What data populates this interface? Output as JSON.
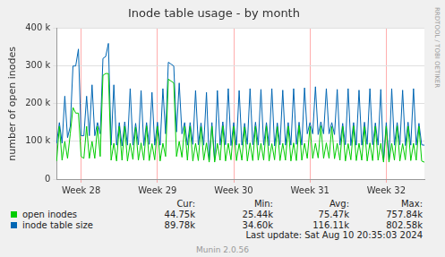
{
  "chart_data": {
    "type": "line",
    "title": "Inode table usage - by month",
    "y_label": "number of open inodes",
    "categories": [
      null,
      null,
      null,
      null,
      null,
      null,
      null,
      null,
      null,
      "Week 28",
      null,
      null,
      null,
      null,
      null,
      null,
      null,
      null,
      null,
      null,
      null,
      null,
      null,
      null,
      null,
      null,
      null,
      null,
      null,
      null,
      null,
      null,
      null,
      null,
      null,
      null,
      null,
      "Week 29",
      null,
      null,
      null,
      null,
      null,
      null,
      null,
      null,
      null,
      null,
      null,
      null,
      null,
      null,
      null,
      null,
      null,
      null,
      null,
      null,
      null,
      null,
      null,
      null,
      null,
      null,
      null,
      "Week 30",
      null,
      null,
      null,
      null,
      null,
      null,
      null,
      null,
      null,
      null,
      null,
      null,
      null,
      null,
      null,
      null,
      null,
      null,
      null,
      null,
      null,
      null,
      null,
      null,
      null,
      null,
      null,
      "Week 31",
      null,
      null,
      null,
      null,
      null,
      null,
      null,
      null,
      null,
      null,
      null,
      null,
      null,
      null,
      null,
      null,
      null,
      null,
      null,
      null,
      null,
      null,
      null,
      null,
      null,
      null,
      null,
      "Week 32",
      null,
      null,
      null,
      null,
      null,
      null,
      null,
      null,
      null,
      null,
      null,
      null,
      null,
      null
    ],
    "series": [
      {
        "name": "open inodes",
        "color": "#00cc00",
        "values": [
          48000,
          140000,
          50000,
          100000,
          55000,
          120000,
          190000,
          175000,
          175000,
          60000,
          55000,
          140000,
          55000,
          100000,
          55000,
          140000,
          60000,
          275000,
          280000,
          280000,
          50000,
          95000,
          48000,
          140000,
          50000,
          140000,
          48000,
          95000,
          52000,
          138000,
          50000,
          96000,
          50000,
          141000,
          49000,
          94000,
          51000,
          140000,
          48000,
          95000,
          60000,
          265000,
          260000,
          255000,
          60000,
          100000,
          58000,
          140000,
          50000,
          140000,
          48000,
          95000,
          49000,
          139000,
          50000,
          96000,
          45000,
          140000,
          45000,
          95000,
          50000,
          141000,
          48000,
          95000,
          51000,
          140000,
          49000,
          94000,
          50000,
          138000,
          48000,
          96000,
          49000,
          140000,
          50000,
          95000,
          50000,
          141000,
          48000,
          94000,
          51000,
          139000,
          49000,
          95000,
          50000,
          140000,
          48000,
          96000,
          49000,
          142000,
          50000,
          95000,
          55000,
          140000,
          55000,
          95000,
          56000,
          141000,
          55000,
          96000,
          55000,
          139000,
          54000,
          95000,
          50000,
          140000,
          48000,
          94000,
          51000,
          141000,
          49000,
          95000,
          50000,
          139000,
          48000,
          96000,
          49000,
          140000,
          50000,
          95000,
          45000,
          140000,
          45000,
          95000,
          50000,
          141000,
          48000,
          94000,
          51000,
          140000,
          49000,
          95000,
          50000,
          140000,
          48000,
          44750
        ]
      },
      {
        "name": "inode table size",
        "color": "#0066b3",
        "values": [
          95000,
          150000,
          95000,
          220000,
          110000,
          140000,
          300000,
          300000,
          345000,
          115000,
          115000,
          220000,
          115000,
          250000,
          115000,
          150000,
          120000,
          320000,
          325000,
          360000,
          90000,
          250000,
          90000,
          150000,
          88000,
          152000,
          90000,
          240000,
          90000,
          148000,
          91000,
          235000,
          89000,
          150000,
          92000,
          230000,
          90000,
          151000,
          90000,
          240000,
          120000,
          310000,
          305000,
          300000,
          125000,
          255000,
          120000,
          150000,
          90000,
          150000,
          92000,
          235000,
          91000,
          149000,
          90000,
          230000,
          50000,
          150000,
          50000,
          235000,
          90000,
          152000,
          91000,
          240000,
          89000,
          150000,
          90000,
          235000,
          90000,
          148000,
          92000,
          240000,
          91000,
          151000,
          90000,
          238000,
          90000,
          150000,
          89000,
          240000,
          88000,
          149000,
          91000,
          236000,
          90000,
          150000,
          90000,
          240000,
          92000,
          151000,
          90000,
          242000,
          120000,
          150000,
          120000,
          245000,
          118000,
          152000,
          120000,
          240000,
          120000,
          150000,
          118000,
          238000,
          90000,
          148000,
          91000,
          240000,
          89000,
          150000,
          90000,
          236000,
          90000,
          151000,
          92000,
          240000,
          91000,
          149000,
          90000,
          238000,
          50000,
          150000,
          50000,
          240000,
          90000,
          150000,
          91000,
          236000,
          89000,
          151000,
          90000,
          240000,
          90000,
          148000,
          91000,
          89780
        ]
      }
    ],
    "ylim": [
      0,
      400000
    ],
    "yticks": [
      0,
      {
        "value": 100000,
        "label": "100 k"
      },
      {
        "value": 200000,
        "label": "200 k"
      },
      {
        "value": 300000,
        "label": "300 k"
      },
      {
        "value": 400000,
        "label": "400 k"
      }
    ],
    "grid": true,
    "legend_table": {
      "columns": [
        "Cur:",
        "Min:",
        "Avg:",
        "Max:"
      ],
      "rows": [
        {
          "name": "open inodes",
          "color": "#00cc00",
          "cells": [
            "44.75k",
            "25.44k",
            "75.47k",
            "757.84k"
          ]
        },
        {
          "name": "inode table size",
          "color": "#0066b3",
          "cells": [
            "89.78k",
            "34.60k",
            "116.11k",
            "802.58k"
          ]
        }
      ]
    },
    "footer": "Last update: Sat Aug 10 20:35:03 2024",
    "credit": "Munin 2.0.56",
    "side_text": "RRDTOOL / TOBI OETIKER"
  }
}
